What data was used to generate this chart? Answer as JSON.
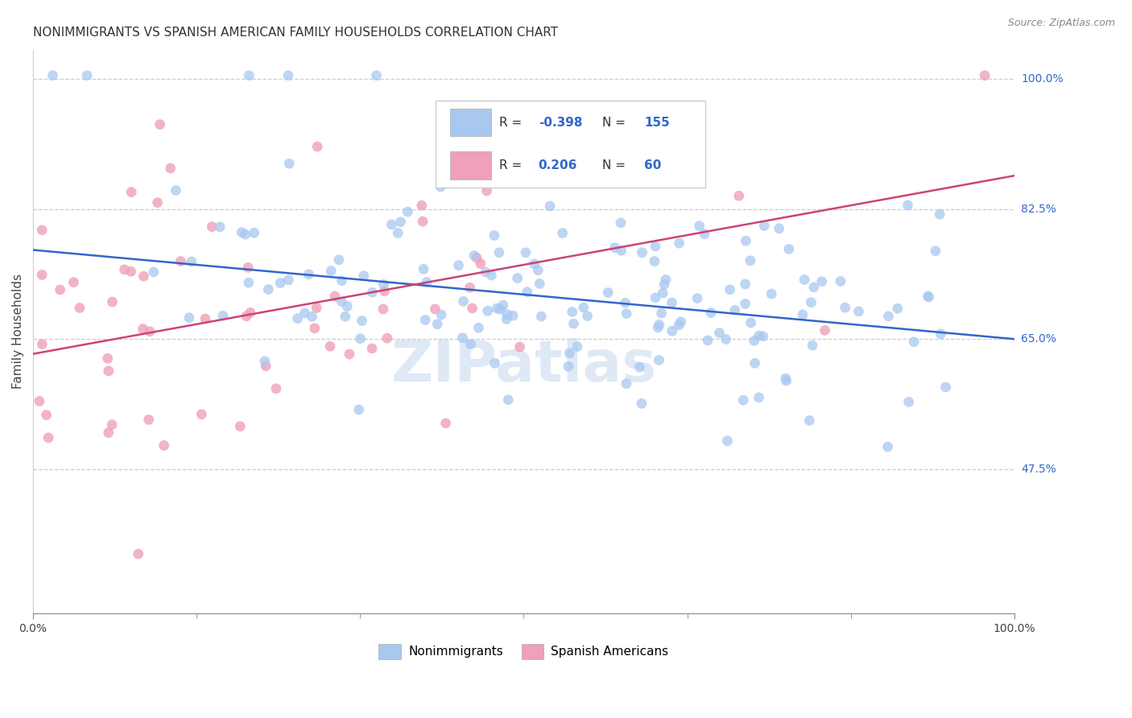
{
  "title": "NONIMMIGRANTS VS SPANISH AMERICAN FAMILY HOUSEHOLDS CORRELATION CHART",
  "source": "Source: ZipAtlas.com",
  "ylabel": "Family Households",
  "x_min": 0.0,
  "x_max": 100.0,
  "y_min": 28.0,
  "y_max": 104.0,
  "y_ticks": [
    47.5,
    65.0,
    82.5,
    100.0
  ],
  "y_tick_labels": [
    "47.5%",
    "65.0%",
    "82.5%",
    "100.0%"
  ],
  "x_ticks": [
    0,
    100
  ],
  "x_tick_labels": [
    "0.0%",
    "100.0%"
  ],
  "blue_R": -0.398,
  "blue_N": 155,
  "pink_R": 0.206,
  "pink_N": 60,
  "blue_color": "#a8c8f0",
  "pink_color": "#f0a0b8",
  "blue_line_color": "#3366cc",
  "pink_line_color": "#cc4477",
  "watermark": "ZIPatlas",
  "legend_blue_label": "Nonimmigrants",
  "legend_pink_label": "Spanish Americans",
  "blue_trend_y0": 77.0,
  "blue_trend_y1": 65.0,
  "pink_trend_y0": 63.0,
  "pink_trend_y1": 87.0,
  "blue_seed": 42,
  "pink_seed": 7
}
